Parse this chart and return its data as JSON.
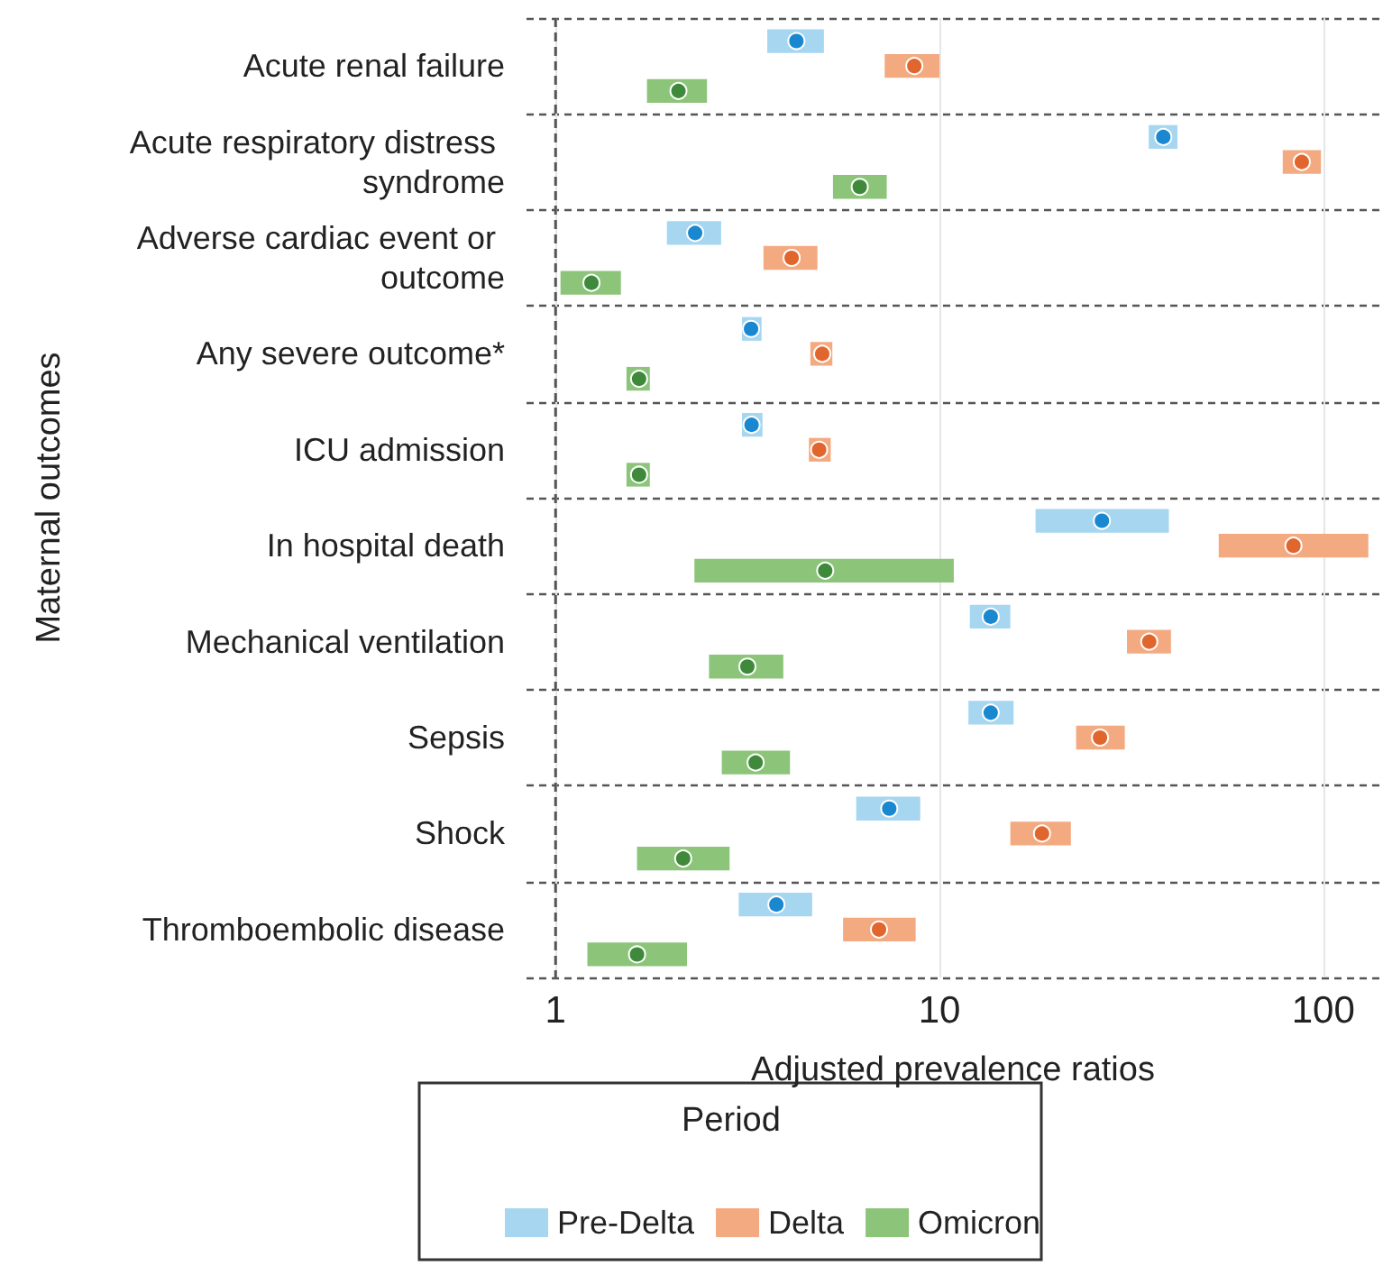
{
  "chart_data": {
    "type": "bar",
    "orientation": "horizontal",
    "xlabel": "Adjusted prevalence ratios",
    "ylabel": "Maternal outcomes",
    "legend_title": "Period",
    "legend": "bottom",
    "log": "x",
    "grid": true,
    "categories": [
      "Acute renal failure",
      "Acute respiratory distress syndrome",
      "Adverse cardiac event or outcome",
      "Any severe outcome*",
      "ICU admission",
      "In hospital death",
      "Mechanical ventilation",
      "Sepsis",
      "Shock",
      "Thromboembolic disease"
    ],
    "xlim": [
      0.84,
      140
    ],
    "xticks": [
      1,
      10,
      100
    ],
    "ref_lines": [
      {
        "axis": "x",
        "value": 1,
        "color": "#555555",
        "line_style": "dashed"
      }
    ],
    "series": [
      {
        "name": "Pre-Delta",
        "color": "#a6d6f0",
        "base": [
          3.56,
          35.1,
          1.95,
          3.06,
          3.06,
          17.8,
          12.0,
          11.9,
          6.07,
          3.0
        ],
        "values": [
          1.44,
          6.6,
          0.75,
          0.38,
          0.4,
          21.8,
          3.3,
          3.7,
          2.84,
          1.66
        ]
      },
      {
        "name": "Delta",
        "color": "#f4aa80",
        "base": [
          7.2,
          78.4,
          3.48,
          4.61,
          4.57,
          53.4,
          30.8,
          22.7,
          15.3,
          5.61
        ],
        "values": [
          2.8,
          20.2,
          1.33,
          0.65,
          0.64,
          77.6,
          9.3,
          7.7,
          6.7,
          3.06
        ]
      },
      {
        "name": "Omicron",
        "color": "#8cc47a",
        "base": [
          1.73,
          5.28,
          1.03,
          1.53,
          1.53,
          2.3,
          2.51,
          2.71,
          1.63,
          1.21
        ],
        "values": [
          0.75,
          2.01,
          0.45,
          0.23,
          0.23,
          8.6,
          1.41,
          1.37,
          1.21,
          0.99
        ]
      },
      {
        "type": "scatter",
        "color": "#1a88d0",
        "marker": "circle",
        "x": [
          "Acute renal failure",
          "Acute respiratory distress syndrome",
          "Adverse cardiac event or outcome",
          "Any severe outcome*",
          "ICU admission",
          "In hospital death",
          "Mechanical ventilation",
          "Sepsis",
          "Shock",
          "Thromboembolic disease"
        ],
        "values": [
          4.24,
          38.3,
          2.31,
          3.23,
          3.24,
          26.5,
          13.6,
          13.6,
          7.4,
          3.76
        ]
      },
      {
        "type": "scatter",
        "color": "#e0662e",
        "marker": "circle",
        "x": [
          "Acute renal failure",
          "Acute respiratory distress syndrome",
          "Adverse cardiac event or outcome",
          "Any severe outcome*",
          "ICU admission",
          "In hospital death",
          "Mechanical ventilation",
          "Sepsis",
          "Shock",
          "Thromboembolic disease"
        ],
        "values": [
          8.6,
          87.9,
          4.12,
          4.95,
          4.86,
          83.6,
          35.2,
          26.2,
          18.5,
          6.96
        ]
      },
      {
        "type": "scatter",
        "color": "#3f8a3a",
        "marker": "circle",
        "x": [
          "Acute renal failure",
          "Acute respiratory distress syndrome",
          "Adverse cardiac event or outcome",
          "Any severe outcome*",
          "ICU admission",
          "In hospital death",
          "Mechanical ventilation",
          "Sepsis",
          "Shock",
          "Thromboembolic disease"
        ],
        "values": [
          2.09,
          6.2,
          1.24,
          1.65,
          1.65,
          5.04,
          3.16,
          3.32,
          2.15,
          1.63
        ]
      }
    ]
  }
}
